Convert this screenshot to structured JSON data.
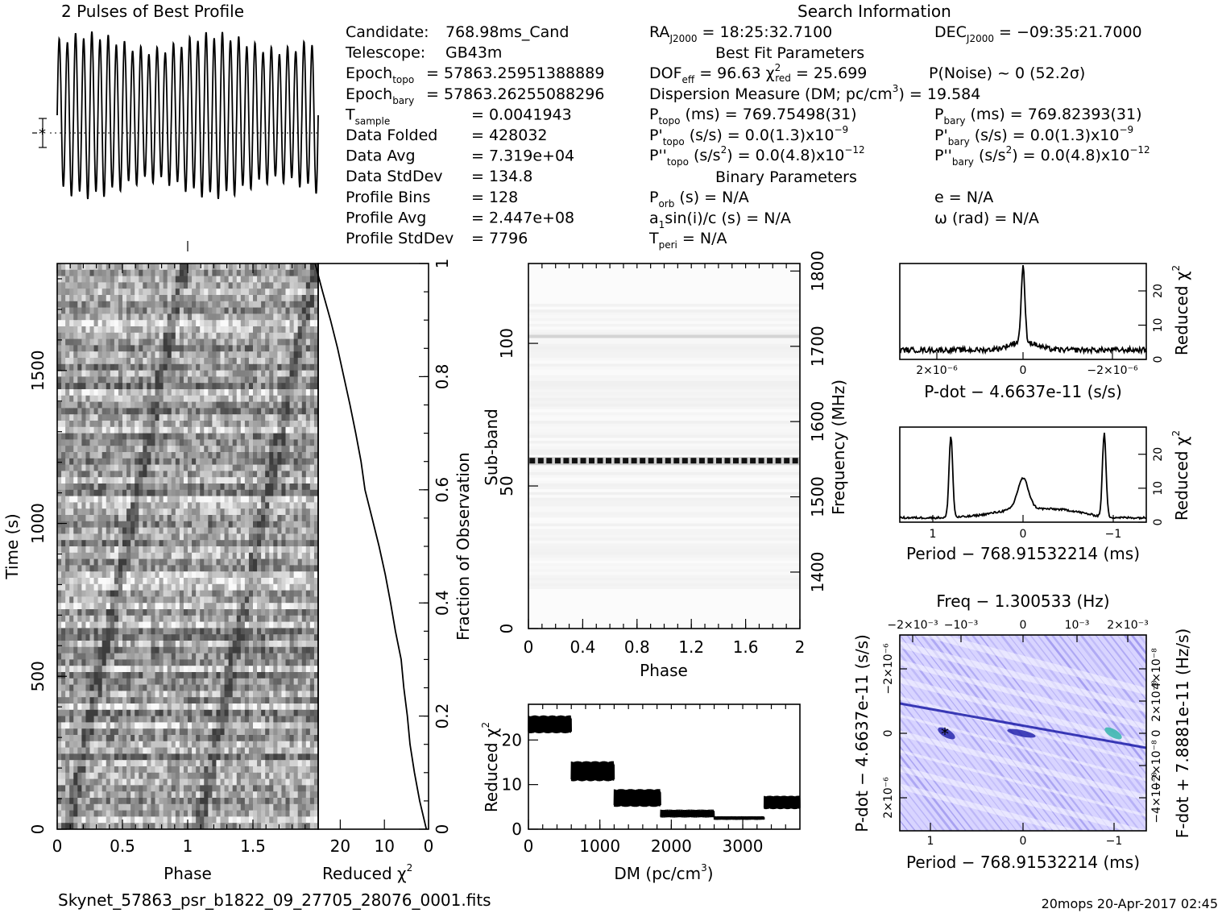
{
  "header": {
    "profile_title": "2 Pulses of Best Profile",
    "search_title": "Search Information",
    "best_fit_title": "Best Fit Parameters",
    "binary_title": "Binary Parameters"
  },
  "info_left": [
    {
      "label": "Candidate:",
      "sub": "",
      "value": "768.98ms_Cand"
    },
    {
      "label": "Telescope:",
      "sub": "",
      "value": "GB43m"
    },
    {
      "label": "Epoch",
      "sub": "topo",
      "value": "= 57863.25951388889"
    },
    {
      "label": "Epoch",
      "sub": "bary",
      "value": "= 57863.26255088296"
    },
    {
      "label": "T",
      "sub": "sample",
      "value": "=   0.0041943"
    },
    {
      "label": "Data Folded",
      "sub": "",
      "value": "=   428032"
    },
    {
      "label": "Data Avg",
      "sub": "",
      "value": "=   7.319e+04"
    },
    {
      "label": "Data StdDev",
      "sub": "",
      "value": "=   134.8"
    },
    {
      "label": "Profile Bins",
      "sub": "",
      "value": "=   128"
    },
    {
      "label": "Profile Avg",
      "sub": "",
      "value": "=   2.447e+08"
    },
    {
      "label": "Profile StdDev",
      "sub": "",
      "value": "=   7796"
    }
  ],
  "info_mid": {
    "ra": "RA_J2000 = 18:25:32.7100",
    "dof": "DOF_eff = 96.63  χ²_red = 25.699",
    "dm": "Dispersion Measure (DM; pc/cm³) = 19.584",
    "ptopo": "P_topo (ms) =  769.75498(31)",
    "pdtopo": "P'_topo (s/s) = 0.0(1.3)x10⁻⁹",
    "pddtopo": "P''_topo (s/s²) = 0.0(4.8)x10⁻¹²",
    "porb": "P_orb (s) = N/A",
    "a1": "a₁sin(i)/c (s) = N/A",
    "tperi": "T_peri = N/A"
  },
  "info_right": {
    "dec": "DEC_J2000 = −09:35:21.7000",
    "pnoise": "P(Noise) ~ 0    (52.2σ)",
    "pbary": "P_bary (ms) =  769.82393(31)",
    "pdbary": "P'_bary (s/s) = 0.0(1.3)x10⁻⁹",
    "pddbary": "P''_bary (s/s²) = 0.0(4.8)x10⁻¹²",
    "e": "e = N/A",
    "omega": "ω (rad) = N/A"
  },
  "footer": {
    "filename": "Skynet_57863_psr_b1822_09_27705_28076_0001.fits",
    "stamp": "20mops 20-Apr-2017 02:45"
  },
  "chart_data": [
    {
      "type": "line",
      "title": "2 Pulses of Best Profile",
      "xlabel": "",
      "ylabel": "",
      "x": [
        0,
        2
      ],
      "cycles": 32
    },
    {
      "type": "heatmap",
      "name": "time-phase",
      "xlabel": "Phase",
      "ylabel": "Time (s)",
      "xlim": [
        0,
        2
      ],
      "ylim": [
        0,
        1850
      ],
      "xticks": [
        "0",
        "0.5",
        "1",
        "1.5"
      ],
      "yticks": [
        "0",
        "500",
        "1000",
        "1500"
      ]
    },
    {
      "type": "line",
      "name": "reduced-chi2-vs-fraction",
      "xlabel": "Reduced χ²",
      "ylabel": "Fraction of Observation",
      "xlim": [
        25,
        0
      ],
      "ylim": [
        0,
        1
      ],
      "xticks": [
        "20",
        "10",
        "0"
      ],
      "yticks": [
        "0",
        "0.2",
        "0.4",
        "0.6",
        "0.8",
        "1"
      ],
      "fraction": [
        0,
        0.05,
        0.1,
        0.15,
        0.2,
        0.25,
        0.3,
        0.35,
        0.4,
        0.45,
        0.5,
        0.55,
        0.6,
        0.65,
        0.7,
        0.75,
        0.8,
        0.85,
        0.9,
        0.95,
        1.0
      ],
      "chi2": [
        0.5,
        2,
        3.2,
        4.2,
        4.8,
        5.6,
        6.2,
        7.5,
        8.6,
        9.8,
        11.2,
        12.8,
        14.4,
        15.3,
        16.5,
        17.8,
        19.2,
        20.6,
        22.2,
        24.0,
        25.7
      ]
    },
    {
      "type": "heatmap",
      "name": "subband-phase",
      "xlabel": "Phase",
      "ylabel": "Sub-band",
      "y2label": "Frequency (MHz)",
      "xlim": [
        0,
        2
      ],
      "ylim": [
        0,
        128
      ],
      "xticks": [
        "0",
        "0.4",
        "0.8",
        "1.2",
        "1.6",
        "2"
      ],
      "yticks": [
        "0",
        "50",
        "100"
      ],
      "y2ticks": [
        "1400",
        "1500",
        "1600",
        "1700",
        "1800"
      ],
      "strong_band": 58,
      "faint_band": 102
    },
    {
      "type": "line",
      "name": "dm-curve",
      "xlabel": "DM (pc/cm³)",
      "ylabel": "Reduced χ²",
      "xlim": [
        0,
        3800
      ],
      "ylim": [
        0,
        28
      ],
      "xticks": [
        "0",
        "1000",
        "2000",
        "3000"
      ],
      "yticks": [
        "0",
        "10",
        "20"
      ],
      "segments": [
        {
          "dm": [
            0,
            600
          ],
          "center": 23.5,
          "spread": 4
        },
        {
          "dm": [
            600,
            1200
          ],
          "center": 13,
          "spread": 4.5
        },
        {
          "dm": [
            1200,
            1850
          ],
          "center": 7,
          "spread": 4
        },
        {
          "dm": [
            1850,
            2600
          ],
          "center": 3.5,
          "spread": 1.8
        },
        {
          "dm": [
            2600,
            3300
          ],
          "center": 2.5,
          "spread": 0.8
        },
        {
          "dm": [
            3300,
            3800
          ],
          "center": 6,
          "spread": 3
        }
      ]
    },
    {
      "type": "line",
      "name": "pdot-curve",
      "xlabel": "P-dot − 4.6637e-11 (s/s)",
      "ylabel": "Reduced χ²",
      "ylim": [
        0,
        28
      ],
      "xticks": [
        "2×10⁻⁶",
        "0",
        "−2×10⁻⁶"
      ],
      "yticks": [
        "0",
        "10",
        "20"
      ],
      "peak": 25.7,
      "baseline": 2
    },
    {
      "type": "line",
      "name": "period-curve",
      "xlabel": "Period − 768.91532214 (ms)",
      "ylabel": "Reduced χ²",
      "ylim": [
        0,
        28
      ],
      "xticks": [
        "1",
        "0",
        "−1"
      ],
      "yticks": [
        "0",
        "10",
        "20"
      ],
      "peaks": [
        {
          "x": 0.8,
          "y": 25
        },
        {
          "x": 0,
          "y": 10
        },
        {
          "x": -0.9,
          "y": 25.5
        }
      ]
    },
    {
      "type": "heatmap",
      "name": "period-pdot",
      "title": "Freq − 1.300533 (Hz)",
      "xlabel": "Period − 768.91532214 (ms)",
      "ylabel": "P-dot − 4.6637e-11 (s/s)",
      "y2label": "F-dot + 7.8881e-11 (Hz/s)",
      "xticks": [
        "1",
        "0",
        "−1"
      ],
      "top_ticks": [
        "−2×10⁻³",
        "−10⁻³",
        "0",
        "10⁻³",
        "2×10⁻³"
      ],
      "yticks": [
        "−2×10⁻⁶",
        "0",
        "2×10⁻⁶"
      ],
      "y2ticks": [
        "4×10⁻⁸",
        "2×10⁻⁸",
        "0",
        "−2×10⁻⁸",
        "−4×10⁻⁸"
      ],
      "colors": {
        "low": "#ffffff",
        "mid": "#b9b4ff",
        "high": "#1c1ca8",
        "marker": "#000000"
      }
    }
  ]
}
